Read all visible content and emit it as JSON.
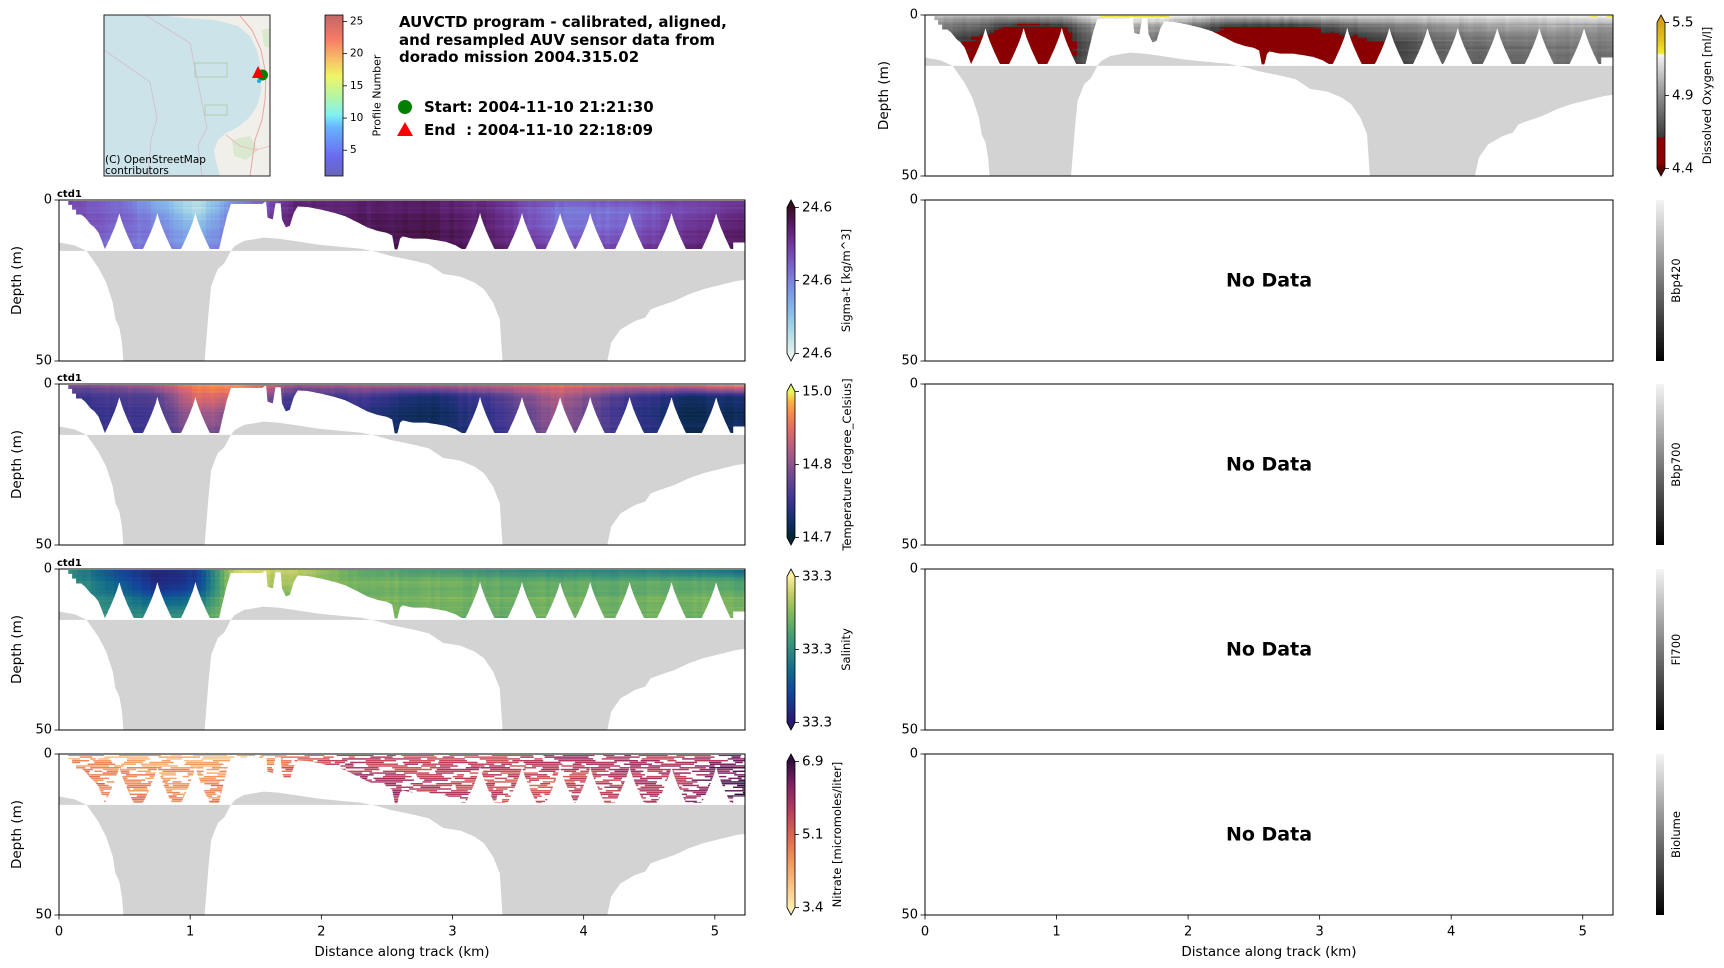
{
  "header": {
    "title_lines": [
      "AUVCTD program - calibrated, aligned,",
      "and resampled AUV sensor data from",
      "dorado mission 2004.315.02"
    ],
    "legend": {
      "start_label": "Start: 2004-11-10 21:21:30",
      "end_label": "End  : 2004-11-10 22:18:09",
      "start_marker_color": "#008000",
      "end_marker_color": "#ff0000"
    },
    "map": {
      "attribution_lines": [
        "(C) OpenStreetMap",
        "contributors"
      ],
      "water_color": "#cce3ea",
      "land_color": "#f1efe9"
    },
    "profile_colorbar": {
      "label": "Profile Number",
      "range": [
        1,
        26
      ],
      "ticks": [
        5,
        10,
        15,
        20,
        25
      ],
      "colors": [
        [
          0,
          "#6666b8"
        ],
        [
          0.12,
          "#6a6af0"
        ],
        [
          0.3,
          "#66b2ff"
        ],
        [
          0.38,
          "#7ff2f2"
        ],
        [
          0.5,
          "#b8f5a0"
        ],
        [
          0.62,
          "#f0f566"
        ],
        [
          0.72,
          "#f7c266"
        ],
        [
          0.85,
          "#f77a66"
        ],
        [
          1,
          "#c26666"
        ]
      ]
    }
  },
  "shared": {
    "xlim_km": [
      0,
      5.23
    ],
    "ylim_m": [
      0,
      50
    ],
    "y_axis_inverted": true,
    "xticks": [
      0,
      1,
      2,
      3,
      4,
      5
    ],
    "yticks": [
      0,
      50
    ],
    "field_grid": {
      "x_km": [
        0,
        0.45,
        0.75,
        1.05,
        1.35,
        1.8,
        2.3,
        2.8,
        3.3,
        3.8,
        4.3,
        4.8,
        5.23
      ],
      "depth_m": [
        0,
        4,
        9,
        15
      ]
    },
    "sample_envelope": {
      "surface_depth_m": 0.3,
      "x_km": [
        0.07,
        0.1,
        0.1,
        0.13,
        0.13,
        0.17,
        0.2,
        0.24,
        0.27,
        0.3,
        0.32,
        0.35,
        1.22,
        1.25,
        1.28,
        1.31,
        1.55,
        1.57,
        1.58,
        1.59,
        1.63,
        1.65,
        1.69,
        1.7,
        1.73,
        1.76,
        1.79,
        1.82,
        1.9,
        2.0,
        2.1,
        2.18,
        2.28,
        2.35,
        2.43,
        2.5,
        2.54,
        2.56,
        2.58,
        2.6,
        2.62,
        2.7,
        2.8,
        2.88,
        2.95,
        3.02,
        3.07,
        5.14,
        5.14,
        5.23
      ],
      "bottom_depth_m": [
        1.5,
        1.5,
        3.0,
        3.0,
        4.5,
        4.5,
        5.5,
        7.5,
        8.5,
        10.0,
        12.0,
        15.2,
        15.2,
        10.0,
        5.0,
        1.2,
        1.2,
        0.6,
        0.6,
        5.5,
        6.0,
        1.0,
        1.0,
        6.0,
        8.5,
        8.0,
        4.0,
        2.0,
        2.2,
        3.0,
        4.0,
        5.0,
        7.0,
        8.5,
        9.6,
        10.2,
        11.0,
        15.3,
        15.3,
        12.0,
        11.3,
        12.0,
        12.0,
        12.5,
        13.0,
        14.0,
        15.2,
        15.2,
        13.2,
        13.2
      ],
      "yo_yo_apex_km": [
        0.46,
        0.75,
        1.04,
        3.21,
        3.53,
        3.82,
        4.05,
        4.35,
        4.67,
        5.01
      ],
      "apex_depth_m": 3.8,
      "max_sample_depth_m": 15.2,
      "notch_half_width_km": 0.11
    },
    "bathymetry": {
      "x_km": [
        0,
        0.12,
        0.21,
        0.3,
        0.36,
        0.41,
        0.43,
        0.46,
        0.48,
        0.5,
        1.1,
        1.11,
        1.14,
        1.16,
        1.21,
        1.26,
        1.29,
        1.31,
        1.34,
        1.41,
        1.56,
        1.67,
        1.79,
        1.97,
        2.16,
        2.3,
        2.42,
        2.53,
        2.71,
        2.82,
        2.93,
        3.06,
        3.17,
        3.24,
        3.31,
        3.36,
        3.39,
        4.17,
        4.18,
        4.21,
        4.28,
        4.39,
        4.47,
        4.51,
        4.58,
        4.69,
        4.8,
        4.91,
        5.06,
        5.17,
        5.23
      ],
      "bottom_depth_m": [
        13.2,
        14.1,
        15.8,
        21.0,
        25.7,
        31.9,
        37.0,
        39.6,
        44.3,
        55.0,
        55.0,
        50.0,
        35.0,
        26.7,
        21.5,
        19.7,
        17.4,
        15.8,
        14.3,
        12.7,
        11.7,
        12.0,
        12.7,
        13.8,
        14.6,
        15.1,
        16.1,
        17.4,
        18.9,
        20.0,
        23.0,
        23.8,
        25.7,
        27.7,
        31.9,
        37.0,
        55.0,
        55.0,
        50.0,
        44.3,
        40.2,
        37.6,
        36.5,
        34.0,
        32.9,
        31.4,
        29.3,
        27.7,
        26.2,
        25.1,
        24.8
      ],
      "fill_reference_depth_m": 15.8,
      "color": "#d3d3d3"
    }
  },
  "chart_data": [
    {
      "type": "heatmap",
      "sensor": "ctd1",
      "ylabel": "Depth (m)",
      "xlabel": "",
      "show_xticklabels": false,
      "no_data": false,
      "sparse_streaks": false,
      "colorbar": {
        "label": "Sigma-t [kg/m^3]",
        "tick_labels": [
          "24.6",
          "24.6",
          "24.6"
        ],
        "extend": "both",
        "colors": [
          [
            0,
            "#e6f1f1"
          ],
          [
            0.1,
            "#c0e2e8"
          ],
          [
            0.2,
            "#9fd0e6"
          ],
          [
            0.3,
            "#88b8e8"
          ],
          [
            0.4,
            "#7d9fe6"
          ],
          [
            0.5,
            "#7b82de"
          ],
          [
            0.6,
            "#7a63cb"
          ],
          [
            0.7,
            "#7546ac"
          ],
          [
            0.8,
            "#672c85"
          ],
          [
            0.9,
            "#50195b"
          ],
          [
            1,
            "#360e24"
          ]
        ]
      },
      "field_levels": [
        [
          0.68,
          0.7,
          0.72,
          0.72
        ],
        [
          0.55,
          0.62,
          0.6,
          0.55
        ],
        [
          0.3,
          0.45,
          0.5,
          0.55
        ],
        [
          0.08,
          0.15,
          0.3,
          0.4
        ],
        [
          0.45,
          0.55,
          0.6,
          0.6
        ],
        [
          0.8,
          0.85,
          0.88,
          0.88
        ],
        [
          0.82,
          0.88,
          0.9,
          0.9
        ],
        [
          0.85,
          0.9,
          0.93,
          0.95
        ],
        [
          0.78,
          0.82,
          0.85,
          0.88
        ],
        [
          0.6,
          0.52,
          0.58,
          0.68
        ],
        [
          0.62,
          0.55,
          0.6,
          0.7
        ],
        [
          0.7,
          0.72,
          0.78,
          0.85
        ],
        [
          0.72,
          0.8,
          0.86,
          0.9
        ]
      ]
    },
    {
      "type": "heatmap",
      "sensor": "ctd1",
      "ylabel": "Depth (m)",
      "xlabel": "",
      "show_xticklabels": false,
      "no_data": false,
      "sparse_streaks": false,
      "colorbar": {
        "label": "Temperature [degree_Celsius]",
        "tick_labels": [
          "14.7",
          "14.8",
          "15.0"
        ],
        "extend": "both",
        "colors": [
          [
            0,
            "#042333"
          ],
          [
            0.12,
            "#14306a"
          ],
          [
            0.25,
            "#3a3490"
          ],
          [
            0.38,
            "#604590"
          ],
          [
            0.5,
            "#8a548d"
          ],
          [
            0.62,
            "#b65e80"
          ],
          [
            0.74,
            "#df6b66"
          ],
          [
            0.85,
            "#f7894a"
          ],
          [
            0.93,
            "#fbb33c"
          ],
          [
            1,
            "#e8fa5b"
          ]
        ]
      },
      "field_levels": [
        [
          0.45,
          0.25,
          0.2,
          0.2
        ],
        [
          0.5,
          0.3,
          0.25,
          0.22
        ],
        [
          0.6,
          0.35,
          0.3,
          0.28
        ],
        [
          0.85,
          0.75,
          0.6,
          0.45
        ],
        [
          0.9,
          0.7,
          0.5,
          0.4
        ],
        [
          0.55,
          0.25,
          0.2,
          0.2
        ],
        [
          0.6,
          0.3,
          0.2,
          0.15
        ],
        [
          0.62,
          0.12,
          0.08,
          0.06
        ],
        [
          0.68,
          0.3,
          0.25,
          0.2
        ],
        [
          0.78,
          0.62,
          0.55,
          0.5
        ],
        [
          0.72,
          0.3,
          0.25,
          0.25
        ],
        [
          0.75,
          0.12,
          0.08,
          0.08
        ],
        [
          0.92,
          0.15,
          0.1,
          0.08
        ]
      ]
    },
    {
      "type": "heatmap",
      "sensor": "ctd1",
      "ylabel": "Depth (m)",
      "xlabel": "",
      "show_xticklabels": false,
      "no_data": false,
      "sparse_streaks": false,
      "colorbar": {
        "label": "Salinity",
        "tick_labels": [
          "33.3",
          "33.3",
          "33.3"
        ],
        "extend": "both",
        "colors": [
          [
            0,
            "#2a186c"
          ],
          [
            0.2,
            "#14439c"
          ],
          [
            0.35,
            "#106a8b"
          ],
          [
            0.5,
            "#2f8b80"
          ],
          [
            0.62,
            "#50a26f"
          ],
          [
            0.75,
            "#83b85c"
          ],
          [
            0.88,
            "#c3cd64"
          ],
          [
            1,
            "#fdef9a"
          ]
        ]
      },
      "field_levels": [
        [
          0.55,
          0.6,
          0.6,
          0.6
        ],
        [
          0.2,
          0.3,
          0.45,
          0.55
        ],
        [
          0.05,
          0.05,
          0.25,
          0.5
        ],
        [
          0.15,
          0.15,
          0.35,
          0.6
        ],
        [
          0.92,
          0.9,
          0.85,
          0.8
        ],
        [
          0.88,
          0.8,
          0.75,
          0.7
        ],
        [
          0.62,
          0.7,
          0.72,
          0.72
        ],
        [
          0.55,
          0.72,
          0.72,
          0.7
        ],
        [
          0.5,
          0.68,
          0.7,
          0.66
        ],
        [
          0.45,
          0.66,
          0.72,
          0.7
        ],
        [
          0.42,
          0.64,
          0.7,
          0.7
        ],
        [
          0.38,
          0.66,
          0.72,
          0.7
        ],
        [
          0.3,
          0.6,
          0.7,
          0.72
        ]
      ]
    },
    {
      "type": "heatmap",
      "sensor": "",
      "ylabel": "Depth (m)",
      "xlabel": "Distance along track (km)",
      "show_xticklabels": true,
      "no_data": false,
      "sparse_streaks": true,
      "colorbar": {
        "label": "Nitrate [micromoles/liter]",
        "tick_labels": [
          "3.4",
          "5.1",
          "6.9"
        ],
        "extend": "both",
        "colors": [
          [
            0,
            "#fdedb0"
          ],
          [
            0.15,
            "#f9c385"
          ],
          [
            0.3,
            "#f39a60"
          ],
          [
            0.45,
            "#e46f53"
          ],
          [
            0.6,
            "#c84a57"
          ],
          [
            0.72,
            "#a83262"
          ],
          [
            0.85,
            "#7b2163"
          ],
          [
            1,
            "#2f0f3d"
          ]
        ]
      },
      "field_levels": [
        [
          0.3,
          0.35,
          0.4,
          0.45
        ],
        [
          0.25,
          0.35,
          0.4,
          0.4
        ],
        [
          0.2,
          0.3,
          0.35,
          0.4
        ],
        [
          0.15,
          0.25,
          0.3,
          0.3
        ],
        [
          0.1,
          0.3,
          0.4,
          0.4
        ],
        [
          0.45,
          0.55,
          0.55,
          0.55
        ],
        [
          0.6,
          0.7,
          0.75,
          0.75
        ],
        [
          0.55,
          0.6,
          0.65,
          0.65
        ],
        [
          0.6,
          0.65,
          0.6,
          0.6
        ],
        [
          0.7,
          0.6,
          0.55,
          0.6
        ],
        [
          0.75,
          0.7,
          0.65,
          0.65
        ],
        [
          0.65,
          0.7,
          0.7,
          0.75
        ],
        [
          0.9,
          0.95,
          0.95,
          0.95
        ]
      ]
    },
    {
      "type": "heatmap",
      "sensor": "",
      "ylabel": "Depth (m)",
      "xlabel": "",
      "show_xticklabels": false,
      "no_data": false,
      "sparse_streaks": false,
      "colorbar": {
        "label": "Dissolved Oxygen [ml/l]",
        "tick_labels": [
          "4.4",
          "4.9",
          "5.5"
        ],
        "extend": "both",
        "colors": [
          [
            0,
            "#5a0000"
          ],
          [
            0.04,
            "#8b0000"
          ],
          [
            0.21,
            "#8b0000"
          ],
          [
            0.215,
            "#3a3a3a"
          ],
          [
            0.5,
            "#8e8e8e"
          ],
          [
            0.78,
            "#f4f4f4"
          ],
          [
            0.785,
            "#f5ec3a"
          ],
          [
            0.88,
            "#e6c21c"
          ],
          [
            1,
            "#d4a017"
          ]
        ]
      },
      "field_levels": [
        [
          0.65,
          0.45,
          0.4,
          0.4
        ],
        [
          0.6,
          0.3,
          0.12,
          0.1
        ],
        [
          0.6,
          0.1,
          0.08,
          0.1
        ],
        [
          0.62,
          0.18,
          0.12,
          0.15
        ],
        [
          0.82,
          0.55,
          0.45,
          0.45
        ],
        [
          0.84,
          0.5,
          0.4,
          0.4
        ],
        [
          0.68,
          0.15,
          0.1,
          0.12
        ],
        [
          0.72,
          0.14,
          0.1,
          0.1
        ],
        [
          0.72,
          0.35,
          0.12,
          0.12
        ],
        [
          0.74,
          0.45,
          0.35,
          0.35
        ],
        [
          0.76,
          0.5,
          0.4,
          0.35
        ],
        [
          0.76,
          0.55,
          0.45,
          0.4
        ],
        [
          0.8,
          0.5,
          0.45,
          0.4
        ]
      ]
    },
    {
      "type": "heatmap",
      "sensor": "",
      "ylabel": "",
      "xlabel": "",
      "show_xticklabels": false,
      "no_data": true,
      "message": "No Data",
      "colorbar": {
        "label": "Bbp420",
        "tick_labels": [],
        "extend": "neither",
        "colors": [
          [
            0,
            "#000000"
          ],
          [
            1,
            "#f5f5f5"
          ]
        ]
      }
    },
    {
      "type": "heatmap",
      "sensor": "",
      "ylabel": "",
      "xlabel": "",
      "show_xticklabels": false,
      "no_data": true,
      "message": "No Data",
      "colorbar": {
        "label": "Bbp700",
        "tick_labels": [],
        "extend": "neither",
        "colors": [
          [
            0,
            "#000000"
          ],
          [
            1,
            "#f5f5f5"
          ]
        ]
      }
    },
    {
      "type": "heatmap",
      "sensor": "",
      "ylabel": "",
      "xlabel": "",
      "show_xticklabels": false,
      "no_data": true,
      "message": "No Data",
      "colorbar": {
        "label": "Fl700",
        "tick_labels": [],
        "extend": "neither",
        "colors": [
          [
            0,
            "#000000"
          ],
          [
            1,
            "#f5f5f5"
          ]
        ]
      }
    },
    {
      "type": "heatmap",
      "sensor": "",
      "ylabel": "",
      "xlabel": "Distance along track (km)",
      "show_xticklabels": true,
      "no_data": true,
      "message": "No Data",
      "colorbar": {
        "label": "Biolume",
        "tick_labels": [],
        "extend": "neither",
        "colors": [
          [
            0,
            "#000000"
          ],
          [
            1,
            "#f5f5f5"
          ]
        ]
      }
    }
  ]
}
